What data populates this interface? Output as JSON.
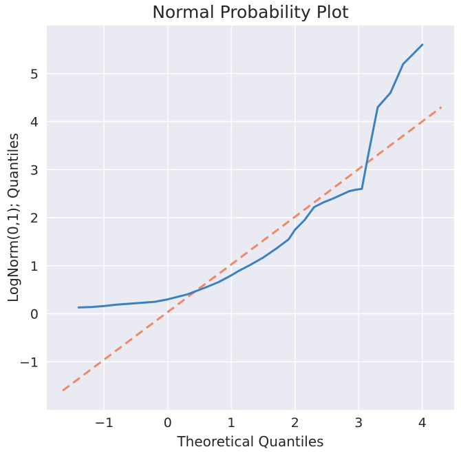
{
  "chart_data": {
    "type": "line",
    "title": "Normal Probability Plot",
    "xlabel": "Theoretical Quantiles",
    "ylabel": "LogNorm(0,1); Quantiles",
    "xlim": [
      -1.9,
      4.5
    ],
    "ylim": [
      -2.0,
      6.0
    ],
    "xticks": [
      -1,
      0,
      1,
      2,
      3,
      4
    ],
    "xtick_labels": [
      "−1",
      "0",
      "1",
      "2",
      "3",
      "4"
    ],
    "yticks": [
      -1,
      0,
      1,
      2,
      3,
      4,
      5
    ],
    "ytick_labels": [
      "−1",
      "0",
      "1",
      "2",
      "3",
      "4",
      "5"
    ],
    "grid": true,
    "background": "#eaeaf2",
    "series": [
      {
        "style": "solid",
        "color": "#3a81c1",
        "x": [
          -1.4,
          -1.2,
          -1.0,
          -0.8,
          -0.6,
          -0.4,
          -0.2,
          0.0,
          0.15,
          0.3,
          0.4,
          0.6,
          0.8,
          1.0,
          1.1,
          1.3,
          1.5,
          1.7,
          1.9,
          2.0,
          2.15,
          2.3,
          2.45,
          2.6,
          2.85,
          2.95,
          3.05,
          3.15,
          3.3,
          3.5,
          3.7,
          3.85,
          4.0
        ],
        "y": [
          0.13,
          0.14,
          0.16,
          0.19,
          0.21,
          0.23,
          0.25,
          0.3,
          0.35,
          0.4,
          0.45,
          0.55,
          0.66,
          0.8,
          0.88,
          1.02,
          1.17,
          1.35,
          1.55,
          1.75,
          1.95,
          2.22,
          2.32,
          2.4,
          2.55,
          2.58,
          2.6,
          3.3,
          4.3,
          4.6,
          5.2,
          5.4,
          5.6
        ]
      },
      {
        "style": "dashed",
        "color": "#ee8866",
        "x": [
          -1.65,
          4.3
        ],
        "y": [
          -1.6,
          4.3
        ]
      }
    ]
  }
}
